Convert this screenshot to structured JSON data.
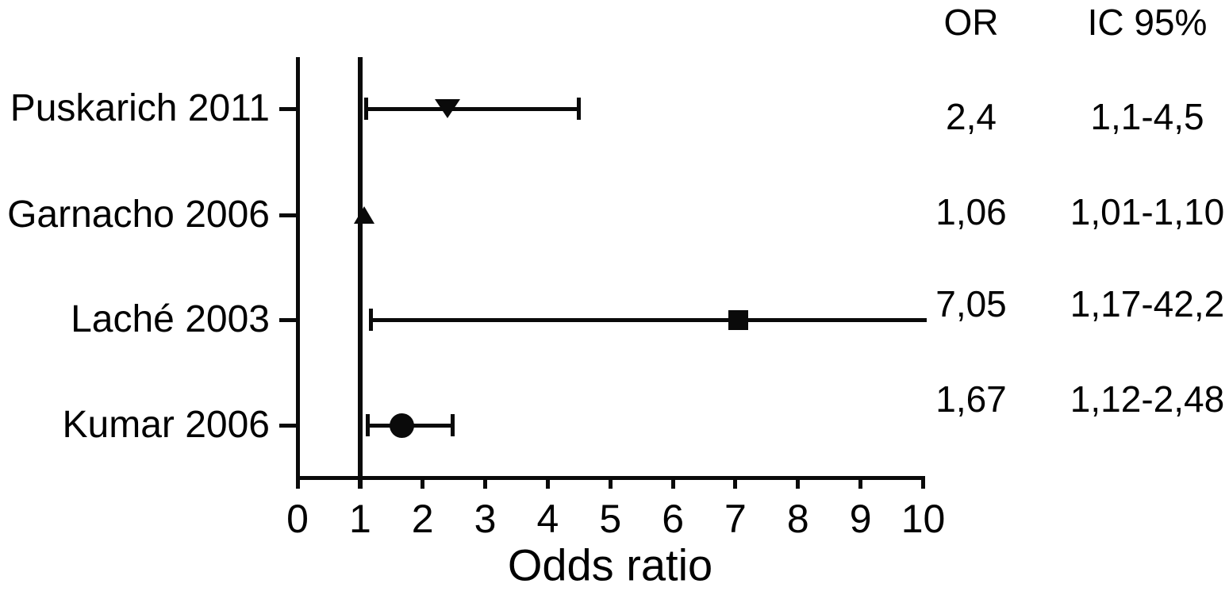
{
  "chart_data": {
    "type": "forest",
    "xlabel": "Odds ratio",
    "xlim": [
      0,
      10
    ],
    "x_ticks": [
      0,
      1,
      2,
      3,
      4,
      5,
      6,
      7,
      8,
      9,
      10
    ],
    "reference_line_x": 1,
    "grid": false,
    "columns": {
      "or": "OR",
      "ci": "IC 95%"
    },
    "studies": [
      {
        "label": "Puskarich 2011",
        "or": 2.4,
        "ci_low": 1.1,
        "ci_high": 4.5,
        "or_text": "2,4",
        "ci_text": "1,1-4,5",
        "marker": "triangle-down",
        "ci_clipped": false
      },
      {
        "label": "Garnacho 2006",
        "or": 1.06,
        "ci_low": 1.01,
        "ci_high": 1.1,
        "or_text": "1,06",
        "ci_text": "1,01-1,10",
        "marker": "triangle-up",
        "ci_clipped": false
      },
      {
        "label": "Laché 2003",
        "or": 7.05,
        "ci_low": 1.17,
        "ci_high": 42.2,
        "or_text": "7,05",
        "ci_text": "1,17-42,2",
        "marker": "square",
        "ci_clipped": true
      },
      {
        "label": "Kumar 2006",
        "or": 1.67,
        "ci_low": 1.12,
        "ci_high": 2.48,
        "or_text": "1,67",
        "ci_text": "1,12-2,48",
        "marker": "circle",
        "ci_clipped": false
      }
    ]
  }
}
